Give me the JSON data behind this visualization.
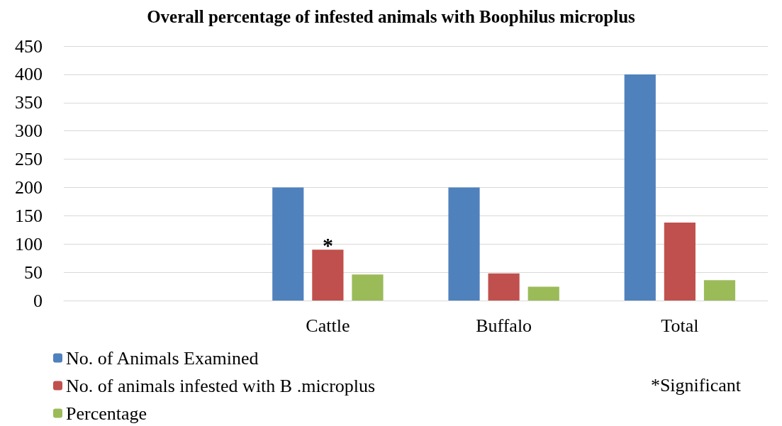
{
  "chart_data": {
    "type": "bar",
    "title": "Overall percentage of infested animals with Boophilus microplus",
    "categories": [
      null,
      "Cattle",
      "Buffalo",
      "Total"
    ],
    "series": [
      {
        "name": "No. of Animals Examined",
        "color": "#4f81bd",
        "values": [
          null,
          200,
          200,
          400
        ]
      },
      {
        "name": "No. of animals infested with B .microplus",
        "color": "#c0504d",
        "values": [
          null,
          90,
          48,
          138
        ]
      },
      {
        "name": "Percentage",
        "color": "#9bbb59",
        "values": [
          null,
          46,
          24.5,
          36
        ]
      }
    ],
    "ylim": [
      0,
      450
    ],
    "yticks": [
      0,
      50,
      100,
      150,
      200,
      250,
      300,
      350,
      400,
      450
    ],
    "grid": "y",
    "legend": "bottom left",
    "annotations": [
      {
        "text": "*",
        "x": "Cattle",
        "y": 90
      },
      "*Significant"
    ]
  }
}
